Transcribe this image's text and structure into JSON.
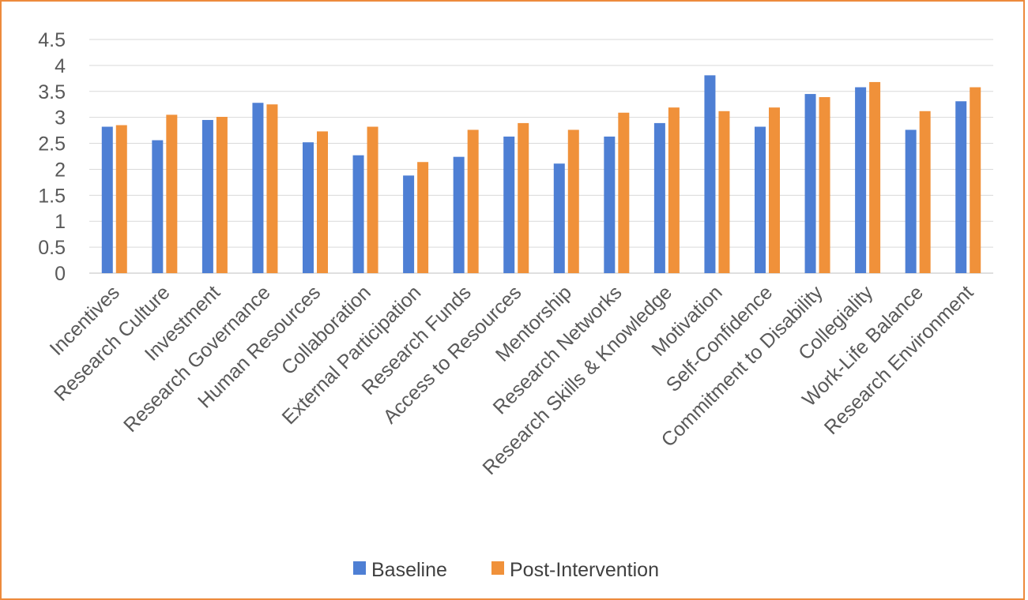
{
  "chart_data": {
    "type": "bar",
    "categories": [
      "Incentives",
      "Research Culture",
      "Investment",
      "Research Governance",
      "Human Resources",
      "Collaboration",
      "External Participation",
      "Research Funds",
      "Access to Resources",
      "Mentorship",
      "Research Networks",
      "Research Skills & Knowledge",
      "Motivation",
      "Self-Confidence",
      "Commitment to Disability",
      "Collegiality",
      "Work-Life Balance",
      "Research Environment"
    ],
    "series": [
      {
        "name": "Baseline",
        "color": "#4e7fd4",
        "values": [
          2.82,
          2.56,
          2.95,
          3.28,
          2.52,
          2.27,
          1.88,
          2.24,
          2.63,
          2.11,
          2.63,
          2.89,
          3.81,
          2.82,
          3.45,
          3.58,
          2.76,
          3.31
        ]
      },
      {
        "name": "Post-Intervention",
        "color": "#f0913a",
        "values": [
          2.85,
          3.05,
          3.01,
          3.25,
          2.73,
          2.82,
          2.14,
          2.76,
          2.89,
          2.76,
          3.09,
          3.19,
          3.12,
          3.19,
          3.39,
          3.68,
          3.12,
          3.58
        ]
      }
    ],
    "y_ticks": [
      "0",
      "0.5",
      "1",
      "1.5",
      "2",
      "2.5",
      "3",
      "3.5",
      "4",
      "4.5"
    ],
    "ylim": [
      0,
      4.5
    ],
    "grid": true,
    "legend_position": "bottom"
  }
}
